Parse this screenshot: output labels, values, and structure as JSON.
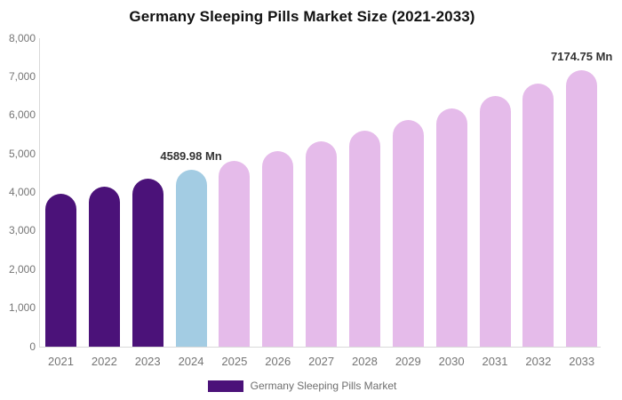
{
  "title": "Germany Sleeping Pills Market Size (2021-2033)",
  "legend": {
    "label": "Germany Sleeping Pills Market",
    "swatch_color": "#4B1279"
  },
  "colors": {
    "historical": "#4B1279",
    "current": "#A3CCE3",
    "forecast": "#E5BBEA",
    "axis_line": "#D9D9D9",
    "axis_text": "#757575",
    "title_text": "#111111",
    "annotation_text": "#333333"
  },
  "chart_data": {
    "type": "bar",
    "title": "Germany Sleeping Pills Market Size (2021-2033)",
    "xlabel": "",
    "ylabel": "",
    "ylim": [
      0,
      8000
    ],
    "grid": false,
    "legend_position": "bottom",
    "categories": [
      "2021",
      "2022",
      "2023",
      "2024",
      "2025",
      "2026",
      "2027",
      "2028",
      "2029",
      "2030",
      "2031",
      "2032",
      "2033"
    ],
    "values": [
      3954.98,
      4156.23,
      4367.72,
      4589.98,
      4823.54,
      5069.01,
      5326.96,
      5598.05,
      5882.93,
      6182.31,
      6496.92,
      6827.55,
      7174.75
    ],
    "segments": [
      "historical",
      "historical",
      "historical",
      "current",
      "forecast",
      "forecast",
      "forecast",
      "forecast",
      "forecast",
      "forecast",
      "forecast",
      "forecast",
      "forecast"
    ],
    "y_ticks": [
      "8,000",
      "7,000",
      "6,000",
      "5,000",
      "4,000",
      "3,000",
      "2,000",
      "1,000",
      "0"
    ],
    "annotations": [
      {
        "category": "2024",
        "text": "4589.98 Mn"
      },
      {
        "category": "2033",
        "text": "7174.75 Mn"
      }
    ]
  }
}
